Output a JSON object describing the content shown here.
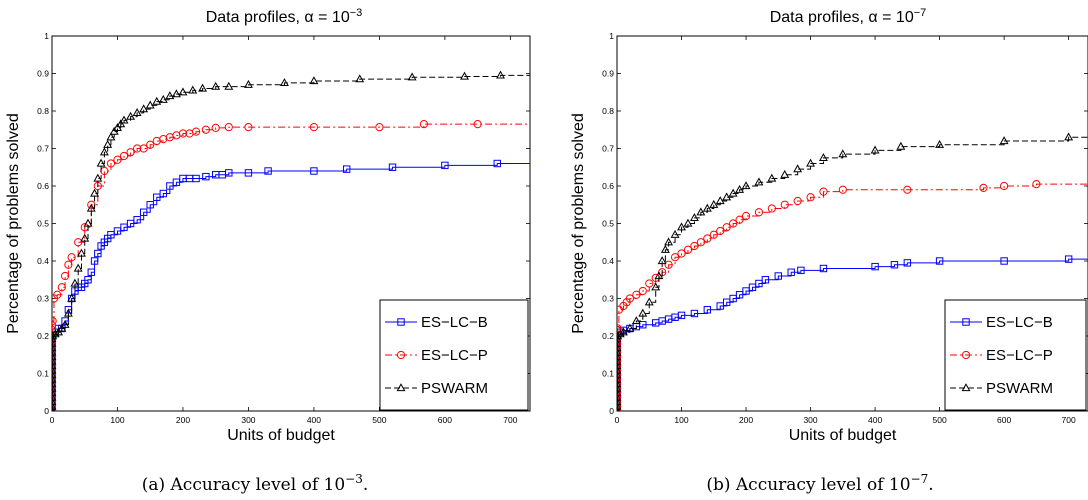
{
  "chart_data": [
    {
      "type": "line",
      "title_prefix": "Data profiles, α = 10",
      "title_exponent": "−3",
      "xlabel": "Units of budget",
      "ylabel": "Percentage of problems solved",
      "xlim": [
        0,
        730
      ],
      "ylim": [
        0,
        1
      ],
      "xticks": [
        0,
        100,
        200,
        300,
        400,
        500,
        600,
        700
      ],
      "yticks": [
        0,
        0.1,
        0.2,
        0.3,
        0.4,
        0.5,
        0.6,
        0.7,
        0.8,
        0.9,
        1
      ],
      "grid": false,
      "legend_position": "bottom-right",
      "caption_prefix": "(a)  Accuracy level of 10",
      "caption_exponent": "−3",
      "caption_suffix": ".",
      "series": [
        {
          "name": "ES−LC−B",
          "color": "#0000ff",
          "dash": "solid",
          "marker": "square",
          "points": [
            [
              0,
              0
            ],
            [
              1,
              0.2
            ],
            [
              5,
              0.21
            ],
            [
              10,
              0.22
            ],
            [
              15,
              0.22
            ],
            [
              20,
              0.24
            ],
            [
              25,
              0.27
            ],
            [
              30,
              0.3
            ],
            [
              35,
              0.32
            ],
            [
              40,
              0.33
            ],
            [
              45,
              0.33
            ],
            [
              50,
              0.34
            ],
            [
              55,
              0.35
            ],
            [
              60,
              0.37
            ],
            [
              65,
              0.4
            ],
            [
              70,
              0.42
            ],
            [
              75,
              0.44
            ],
            [
              80,
              0.45
            ],
            [
              85,
              0.46
            ],
            [
              90,
              0.47
            ],
            [
              100,
              0.48
            ],
            [
              110,
              0.49
            ],
            [
              120,
              0.5
            ],
            [
              130,
              0.51
            ],
            [
              140,
              0.53
            ],
            [
              150,
              0.55
            ],
            [
              160,
              0.57
            ],
            [
              170,
              0.58
            ],
            [
              180,
              0.6
            ],
            [
              190,
              0.61
            ],
            [
              200,
              0.62
            ],
            [
              210,
              0.62
            ],
            [
              220,
              0.62
            ],
            [
              235,
              0.625
            ],
            [
              250,
              0.63
            ],
            [
              260,
              0.63
            ],
            [
              270,
              0.635
            ],
            [
              300,
              0.635
            ],
            [
              330,
              0.64
            ],
            [
              400,
              0.64
            ],
            [
              450,
              0.645
            ],
            [
              520,
              0.65
            ],
            [
              600,
              0.655
            ],
            [
              680,
              0.66
            ],
            [
              730,
              0.665
            ]
          ]
        },
        {
          "name": "ES−LC−P",
          "color": "#ff0000",
          "dash": "dashdot",
          "marker": "circle",
          "points": [
            [
              0,
              0
            ],
            [
              1,
              0.24
            ],
            [
              3,
              0.3
            ],
            [
              8,
              0.31
            ],
            [
              15,
              0.33
            ],
            [
              20,
              0.36
            ],
            [
              25,
              0.39
            ],
            [
              30,
              0.41
            ],
            [
              40,
              0.45
            ],
            [
              50,
              0.49
            ],
            [
              60,
              0.55
            ],
            [
              70,
              0.6
            ],
            [
              80,
              0.64
            ],
            [
              90,
              0.66
            ],
            [
              100,
              0.67
            ],
            [
              110,
              0.68
            ],
            [
              120,
              0.69
            ],
            [
              130,
              0.7
            ],
            [
              140,
              0.7
            ],
            [
              150,
              0.71
            ],
            [
              160,
              0.72
            ],
            [
              170,
              0.725
            ],
            [
              180,
              0.73
            ],
            [
              190,
              0.735
            ],
            [
              200,
              0.74
            ],
            [
              210,
              0.74
            ],
            [
              220,
              0.745
            ],
            [
              235,
              0.75
            ],
            [
              250,
              0.755
            ],
            [
              270,
              0.757
            ],
            [
              300,
              0.757
            ],
            [
              400,
              0.757
            ],
            [
              500,
              0.757
            ],
            [
              568,
              0.765
            ],
            [
              650,
              0.765
            ],
            [
              730,
              0.765
            ]
          ]
        },
        {
          "name": "PSWARM",
          "color": "#000000",
          "dash": "dashed",
          "marker": "triangle",
          "points": [
            [
              0,
              0
            ],
            [
              1,
              0.2
            ],
            [
              5,
              0.205
            ],
            [
              10,
              0.21
            ],
            [
              15,
              0.22
            ],
            [
              20,
              0.23
            ],
            [
              25,
              0.26
            ],
            [
              30,
              0.3
            ],
            [
              35,
              0.34
            ],
            [
              40,
              0.38
            ],
            [
              45,
              0.42
            ],
            [
              50,
              0.46
            ],
            [
              55,
              0.5
            ],
            [
              60,
              0.54
            ],
            [
              65,
              0.58
            ],
            [
              70,
              0.62
            ],
            [
              75,
              0.66
            ],
            [
              80,
              0.69
            ],
            [
              85,
              0.71
            ],
            [
              90,
              0.73
            ],
            [
              95,
              0.745
            ],
            [
              100,
              0.755
            ],
            [
              105,
              0.765
            ],
            [
              110,
              0.775
            ],
            [
              120,
              0.785
            ],
            [
              130,
              0.795
            ],
            [
              140,
              0.805
            ],
            [
              150,
              0.815
            ],
            [
              160,
              0.825
            ],
            [
              170,
              0.83
            ],
            [
              180,
              0.84
            ],
            [
              190,
              0.845
            ],
            [
              200,
              0.85
            ],
            [
              215,
              0.855
            ],
            [
              230,
              0.86
            ],
            [
              250,
              0.865
            ],
            [
              270,
              0.865
            ],
            [
              300,
              0.87
            ],
            [
              355,
              0.875
            ],
            [
              400,
              0.88
            ],
            [
              470,
              0.885
            ],
            [
              550,
              0.89
            ],
            [
              630,
              0.892
            ],
            [
              685,
              0.895
            ],
            [
              730,
              0.9
            ]
          ]
        }
      ]
    },
    {
      "type": "line",
      "title_prefix": "Data profiles, α = 10",
      "title_exponent": "−7",
      "xlabel": "Units of budget",
      "ylabel": "Percentage of problems solved",
      "xlim": [
        0,
        730
      ],
      "ylim": [
        0,
        1
      ],
      "xticks": [
        0,
        100,
        200,
        300,
        400,
        500,
        600,
        700
      ],
      "yticks": [
        0,
        0.1,
        0.2,
        0.3,
        0.4,
        0.5,
        0.6,
        0.7,
        0.8,
        0.9,
        1
      ],
      "grid": false,
      "legend_position": "bottom-right",
      "caption_prefix": "(b)  Accuracy level of 10",
      "caption_exponent": "−7",
      "caption_suffix": ".",
      "series": [
        {
          "name": "ES−LC−B",
          "color": "#0000ff",
          "dash": "solid",
          "marker": "square",
          "points": [
            [
              0,
              0
            ],
            [
              1,
              0.2
            ],
            [
              5,
              0.21
            ],
            [
              10,
              0.215
            ],
            [
              20,
              0.22
            ],
            [
              30,
              0.225
            ],
            [
              40,
              0.23
            ],
            [
              60,
              0.235
            ],
            [
              70,
              0.24
            ],
            [
              80,
              0.245
            ],
            [
              90,
              0.25
            ],
            [
              100,
              0.255
            ],
            [
              120,
              0.26
            ],
            [
              140,
              0.27
            ],
            [
              160,
              0.28
            ],
            [
              170,
              0.29
            ],
            [
              180,
              0.3
            ],
            [
              190,
              0.31
            ],
            [
              200,
              0.32
            ],
            [
              210,
              0.33
            ],
            [
              220,
              0.34
            ],
            [
              230,
              0.35
            ],
            [
              250,
              0.36
            ],
            [
              270,
              0.37
            ],
            [
              285,
              0.375
            ],
            [
              320,
              0.38
            ],
            [
              400,
              0.385
            ],
            [
              430,
              0.39
            ],
            [
              450,
              0.395
            ],
            [
              500,
              0.4
            ],
            [
              600,
              0.4
            ],
            [
              700,
              0.405
            ],
            [
              730,
              0.41
            ]
          ]
        },
        {
          "name": "ES−LC−P",
          "color": "#ff0000",
          "dash": "dashdot",
          "marker": "circle",
          "points": [
            [
              0,
              0
            ],
            [
              1,
              0.22
            ],
            [
              3,
              0.27
            ],
            [
              10,
              0.28
            ],
            [
              15,
              0.29
            ],
            [
              20,
              0.3
            ],
            [
              30,
              0.31
            ],
            [
              40,
              0.32
            ],
            [
              50,
              0.34
            ],
            [
              60,
              0.355
            ],
            [
              70,
              0.37
            ],
            [
              80,
              0.39
            ],
            [
              90,
              0.41
            ],
            [
              100,
              0.42
            ],
            [
              110,
              0.43
            ],
            [
              120,
              0.44
            ],
            [
              130,
              0.45
            ],
            [
              140,
              0.46
            ],
            [
              150,
              0.47
            ],
            [
              160,
              0.48
            ],
            [
              170,
              0.49
            ],
            [
              180,
              0.5
            ],
            [
              190,
              0.51
            ],
            [
              200,
              0.52
            ],
            [
              220,
              0.53
            ],
            [
              240,
              0.54
            ],
            [
              260,
              0.55
            ],
            [
              280,
              0.56
            ],
            [
              300,
              0.57
            ],
            [
              320,
              0.585
            ],
            [
              350,
              0.59
            ],
            [
              450,
              0.59
            ],
            [
              568,
              0.595
            ],
            [
              600,
              0.6
            ],
            [
              650,
              0.605
            ],
            [
              730,
              0.605
            ]
          ]
        },
        {
          "name": "PSWARM",
          "color": "#000000",
          "dash": "dashed",
          "marker": "triangle",
          "points": [
            [
              0,
              0
            ],
            [
              1,
              0.2
            ],
            [
              5,
              0.205
            ],
            [
              10,
              0.21
            ],
            [
              20,
              0.22
            ],
            [
              30,
              0.24
            ],
            [
              40,
              0.26
            ],
            [
              50,
              0.29
            ],
            [
              60,
              0.33
            ],
            [
              65,
              0.36
            ],
            [
              70,
              0.4
            ],
            [
              75,
              0.43
            ],
            [
              80,
              0.45
            ],
            [
              90,
              0.47
            ],
            [
              100,
              0.49
            ],
            [
              110,
              0.5
            ],
            [
              120,
              0.515
            ],
            [
              130,
              0.53
            ],
            [
              140,
              0.54
            ],
            [
              150,
              0.55
            ],
            [
              160,
              0.56
            ],
            [
              170,
              0.57
            ],
            [
              180,
              0.58
            ],
            [
              190,
              0.59
            ],
            [
              200,
              0.6
            ],
            [
              220,
              0.61
            ],
            [
              240,
              0.62
            ],
            [
              260,
              0.63
            ],
            [
              280,
              0.645
            ],
            [
              300,
              0.66
            ],
            [
              320,
              0.675
            ],
            [
              350,
              0.685
            ],
            [
              400,
              0.695
            ],
            [
              440,
              0.705
            ],
            [
              500,
              0.71
            ],
            [
              600,
              0.72
            ],
            [
              700,
              0.73
            ],
            [
              730,
              0.735
            ]
          ]
        }
      ]
    }
  ]
}
